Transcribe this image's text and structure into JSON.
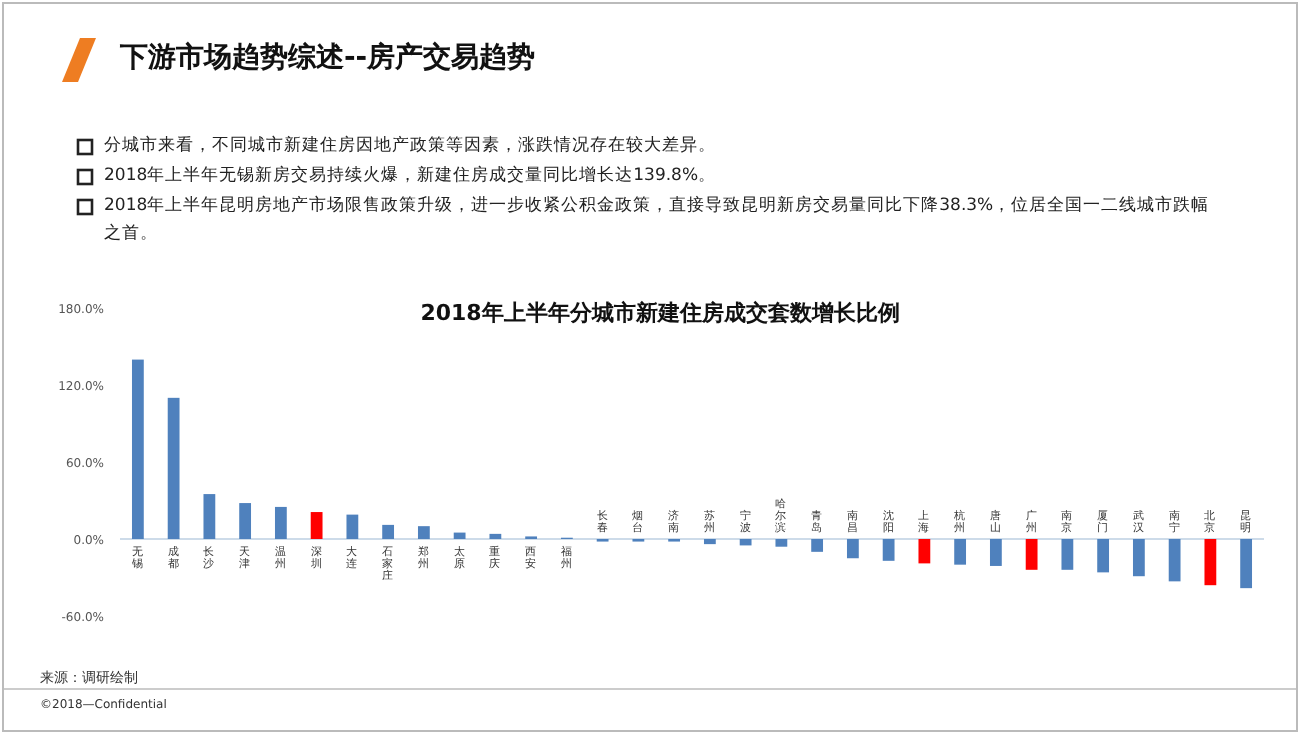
{
  "chart_data": {
    "type": "bar",
    "title": "下游市场趋势综述--房产交易趋势",
    "subtitle": "2018年上半年分城市新建住房成交套数增长比例",
    "annotations": [
      "分城市来看，不同城市新建住房因地产政策等因素，涨跌情况存在较大差异。",
      "2018年上半年无锡新房交易持续火爆，新建住房成交量同比增长达139.8%。",
      "2018年上半年昆明房地产市场限售政策升级，进一步收紧公积金政策，直接导致昆明新房交易量同比下降38.3%，位居全国一二线城市跌幅之首。",
      "来源：调研绘制",
      "©2018—Confidential"
    ],
    "categories": [
      "无锡",
      "成都",
      "长沙",
      "天津",
      "温州",
      "深圳",
      "大连",
      "石家庄",
      "郑州",
      "太原",
      "重庆",
      "西安",
      "福州",
      "长春",
      "烟台",
      "济南",
      "苏州",
      "宁波",
      "哈尔滨",
      "青岛",
      "南昌",
      "沈阳",
      "上海",
      "杭州",
      "唐山",
      "广州",
      "南京",
      "厦门",
      "武汉",
      "南宁",
      "北京",
      "昆明"
    ],
    "values": [
      139.8,
      110,
      35,
      28,
      25,
      21,
      19,
      11,
      10,
      5,
      4,
      2,
      1,
      -2,
      -2,
      -2,
      -4,
      -5,
      -6,
      -10,
      -15,
      -17,
      -19,
      -20,
      -21,
      -24,
      -24,
      -26,
      -29,
      -33,
      -36,
      -38.3
    ],
    "colors": [
      "#4f81bd",
      "#4f81bd",
      "#4f81bd",
      "#4f81bd",
      "#4f81bd",
      "#ff0000",
      "#4f81bd",
      "#4f81bd",
      "#4f81bd",
      "#4f81bd",
      "#4f81bd",
      "#4f81bd",
      "#4f81bd",
      "#4f81bd",
      "#4f81bd",
      "#4f81bd",
      "#4f81bd",
      "#4f81bd",
      "#4f81bd",
      "#4f81bd",
      "#4f81bd",
      "#4f81bd",
      "#ff0000",
      "#4f81bd",
      "#4f81bd",
      "#ff0000",
      "#4f81bd",
      "#4f81bd",
      "#4f81bd",
      "#4f81bd",
      "#ff0000",
      "#4f81bd"
    ],
    "ylim": [
      -60,
      180
    ],
    "yticks": [
      {
        "value": -60,
        "label": "-60.0%"
      },
      {
        "value": 0,
        "label": "0.0%"
      },
      {
        "value": 60,
        "label": "60.0%"
      },
      {
        "value": 120,
        "label": "120.0%"
      },
      {
        "value": 180,
        "label": "180.0%"
      }
    ],
    "grid": false
  }
}
